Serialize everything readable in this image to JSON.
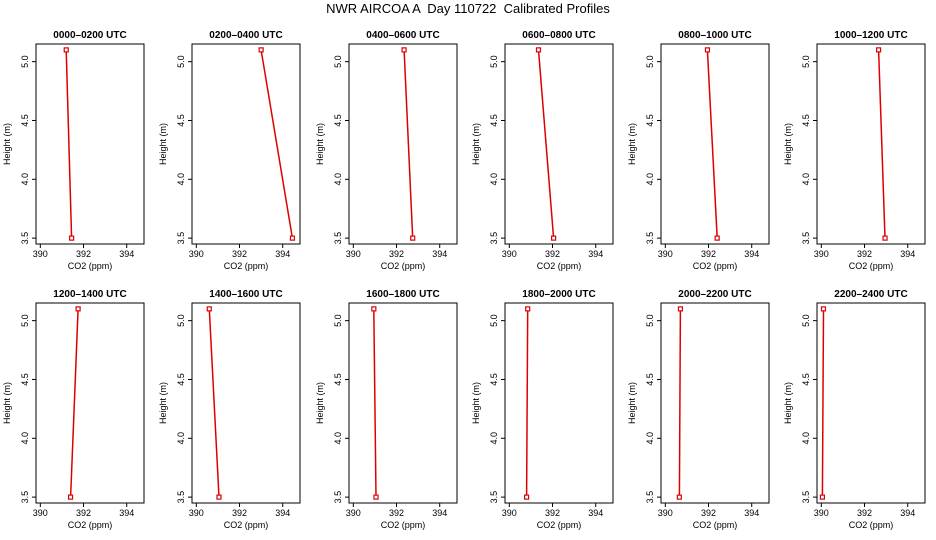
{
  "title": "NWR AIRCOA A  Day 110722  Calibrated Profiles",
  "chart_data": {
    "type": "line",
    "xlabel": "CO2 (ppm)",
    "ylabel": "Height (m)",
    "xlim": [
      389.8,
      394.8
    ],
    "ylim": [
      3.45,
      5.15
    ],
    "xticks": [
      390,
      392,
      394
    ],
    "yticks": [
      3.5,
      4.0,
      4.5,
      5.0
    ],
    "line_color": "#dd0000",
    "marker_color": "#dd0000",
    "panels": [
      {
        "title": "0000–0200 UTC",
        "x": [
          391.2,
          391.45
        ],
        "y": [
          5.1,
          3.5
        ]
      },
      {
        "title": "0200–0400 UTC",
        "x": [
          393.0,
          394.45
        ],
        "y": [
          5.1,
          3.5
        ]
      },
      {
        "title": "0400–0600 UTC",
        "x": [
          392.35,
          392.75
        ],
        "y": [
          5.1,
          3.5
        ]
      },
      {
        "title": "0600–0800 UTC",
        "x": [
          391.35,
          392.05
        ],
        "y": [
          5.1,
          3.5
        ]
      },
      {
        "title": "0800–1000 UTC",
        "x": [
          391.95,
          392.4
        ],
        "y": [
          5.1,
          3.5
        ]
      },
      {
        "title": "1000–1200 UTC",
        "x": [
          392.65,
          392.95
        ],
        "y": [
          5.1,
          3.5
        ]
      },
      {
        "title": "1200–1400 UTC",
        "x": [
          391.75,
          391.4
        ],
        "y": [
          5.1,
          3.5
        ]
      },
      {
        "title": "1400–1600 UTC",
        "x": [
          390.6,
          391.05
        ],
        "y": [
          5.1,
          3.5
        ]
      },
      {
        "title": "1600–1800 UTC",
        "x": [
          390.95,
          391.05
        ],
        "y": [
          5.1,
          3.5
        ]
      },
      {
        "title": "1800–2000 UTC",
        "x": [
          390.85,
          390.8
        ],
        "y": [
          5.1,
          3.5
        ]
      },
      {
        "title": "2000–2200 UTC",
        "x": [
          390.7,
          390.65
        ],
        "y": [
          5.1,
          3.5
        ]
      },
      {
        "title": "2200–2400 UTC",
        "x": [
          390.1,
          390.05
        ],
        "y": [
          5.1,
          3.5
        ]
      }
    ]
  }
}
